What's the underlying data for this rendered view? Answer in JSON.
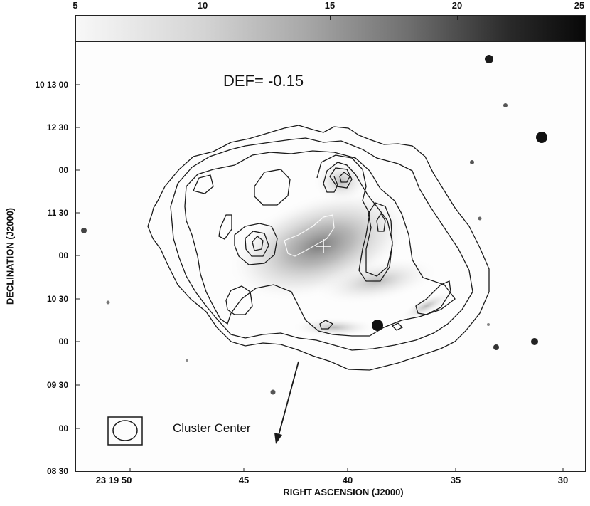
{
  "colorbar": {
    "tick_labels": [
      "5",
      "10",
      "15",
      "20",
      "25"
    ]
  },
  "axes": {
    "y_title": "DECLINATION (J2000)",
    "x_title": "RIGHT ASCENSION (J2000)",
    "y_ticks": [
      "10 13 00",
      "12 30",
      "00",
      "11 30",
      "00",
      "10 30",
      "00",
      "09 30",
      "00",
      "08 30"
    ],
    "x_ticks": [
      "23 19 50",
      "45",
      "40",
      "35",
      "30"
    ]
  },
  "annotations": {
    "def_text": "DEF= -0.15",
    "cluster_center": "Cluster Center"
  },
  "colors": {
    "contour": "#1a1a1a",
    "frame": "#222222"
  }
}
